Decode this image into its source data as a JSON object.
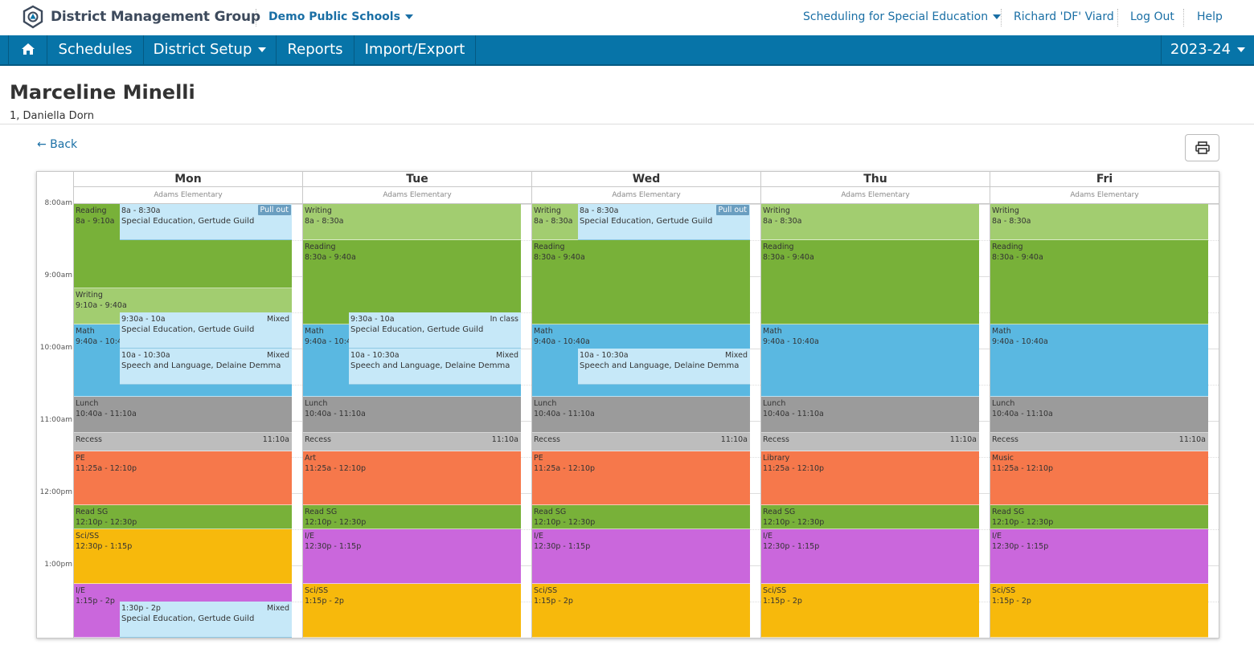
{
  "header": {
    "brand": "District Management Group",
    "district": "Demo Public Schools",
    "module": "Scheduling for Special Education",
    "user": "Richard 'DF' Viard",
    "logout": "Log Out",
    "help": "Help"
  },
  "nav": {
    "schedules": "Schedules",
    "district_setup": "District Setup",
    "reports": "Reports",
    "import_export": "Import/Export",
    "year": "2023-24"
  },
  "student": {
    "name": "Marceline Minelli",
    "subtitle": "1, Daniella Dorn"
  },
  "back": "← Back",
  "times": [
    "8:00am",
    "9:00am",
    "10:00am",
    "11:00am",
    "12:00pm",
    "1:00pm"
  ],
  "days": [
    {
      "name": "Mon",
      "school": "Adams Elementary",
      "blocks": [
        {
          "title": "Reading",
          "time": "8a - 9:10a",
          "color": "read",
          "start": 0,
          "end": 70
        },
        {
          "title": "Writing",
          "time": "9:10a - 9:40a",
          "color": "write",
          "start": 70,
          "end": 100
        },
        {
          "title": "Math",
          "time": "9:40a - 10:40a",
          "color": "math",
          "start": 100,
          "end": 160
        },
        {
          "title": "Lunch",
          "time": "10:40a - 11:10a",
          "color": "lunch",
          "start": 160,
          "end": 190
        },
        {
          "title": "Recess",
          "right": "11:10a",
          "color": "recess",
          "start": 190,
          "end": 205
        },
        {
          "title": "PE",
          "time": "11:25a - 12:10p",
          "color": "special",
          "start": 205,
          "end": 250
        },
        {
          "title": "Read SG",
          "time": "12:10p - 12:30p",
          "color": "read",
          "start": 250,
          "end": 270
        },
        {
          "title": "Sci/SS",
          "time": "12:30p - 1:15p",
          "color": "sci",
          "start": 270,
          "end": 315
        },
        {
          "title": "I/E",
          "time": "1:15p - 2p",
          "color": "ie",
          "start": 315,
          "end": 360
        }
      ],
      "services": [
        {
          "time": "8a - 8:30a",
          "title": "Special Education, Gertude Guild",
          "tag": "Pull out",
          "dark": true,
          "start": 0,
          "end": 30
        },
        {
          "time": "9:30a - 10a",
          "title": "Special Education, Gertude Guild",
          "tag": "Mixed",
          "dark": false,
          "start": 90,
          "end": 120
        },
        {
          "time": "10a - 10:30a",
          "title": "Speech and Language, Delaine Demma",
          "tag": "Mixed",
          "dark": false,
          "start": 120,
          "end": 150
        },
        {
          "time": "1:30p - 2p",
          "title": "Special Education, Gertude Guild",
          "tag": "Mixed",
          "dark": false,
          "start": 330,
          "end": 360
        }
      ]
    },
    {
      "name": "Tue",
      "school": "Adams Elementary",
      "blocks": [
        {
          "title": "Writing",
          "time": "8a - 8:30a",
          "color": "write",
          "start": 0,
          "end": 30
        },
        {
          "title": "Reading",
          "time": "8:30a - 9:40a",
          "color": "read",
          "start": 30,
          "end": 100
        },
        {
          "title": "Math",
          "time": "9:40a - 10:40a",
          "color": "math",
          "start": 100,
          "end": 160
        },
        {
          "title": "Lunch",
          "time": "10:40a - 11:10a",
          "color": "lunch",
          "start": 160,
          "end": 190
        },
        {
          "title": "Recess",
          "right": "11:10a",
          "color": "recess",
          "start": 190,
          "end": 205
        },
        {
          "title": "Art",
          "time": "11:25a - 12:10p",
          "color": "special",
          "start": 205,
          "end": 250
        },
        {
          "title": "Read SG",
          "time": "12:10p - 12:30p",
          "color": "read",
          "start": 250,
          "end": 270
        },
        {
          "title": "I/E",
          "time": "12:30p - 1:15p",
          "color": "ie",
          "start": 270,
          "end": 315
        },
        {
          "title": "Sci/SS",
          "time": "1:15p - 2p",
          "color": "sci",
          "start": 315,
          "end": 360
        }
      ],
      "services": [
        {
          "time": "9:30a - 10a",
          "title": "Special Education, Gertude Guild",
          "tag": "In class",
          "dark": false,
          "start": 90,
          "end": 120
        },
        {
          "time": "10a - 10:30a",
          "title": "Speech and Language, Delaine Demma",
          "tag": "Mixed",
          "dark": false,
          "start": 120,
          "end": 150
        }
      ]
    },
    {
      "name": "Wed",
      "school": "Adams Elementary",
      "blocks": [
        {
          "title": "Writing",
          "time": "8a - 8:30a",
          "color": "write",
          "start": 0,
          "end": 30
        },
        {
          "title": "Reading",
          "time": "8:30a - 9:40a",
          "color": "read",
          "start": 30,
          "end": 100
        },
        {
          "title": "Math",
          "time": "9:40a - 10:40a",
          "color": "math",
          "start": 100,
          "end": 160
        },
        {
          "title": "Lunch",
          "time": "10:40a - 11:10a",
          "color": "lunch",
          "start": 160,
          "end": 190
        },
        {
          "title": "Recess",
          "right": "11:10a",
          "color": "recess",
          "start": 190,
          "end": 205
        },
        {
          "title": "PE",
          "time": "11:25a - 12:10p",
          "color": "special",
          "start": 205,
          "end": 250
        },
        {
          "title": "Read SG",
          "time": "12:10p - 12:30p",
          "color": "read",
          "start": 250,
          "end": 270
        },
        {
          "title": "I/E",
          "time": "12:30p - 1:15p",
          "color": "ie",
          "start": 270,
          "end": 315
        },
        {
          "title": "Sci/SS",
          "time": "1:15p - 2p",
          "color": "sci",
          "start": 315,
          "end": 360
        }
      ],
      "services": [
        {
          "time": "8a - 8:30a",
          "title": "Special Education, Gertude Guild",
          "tag": "Pull out",
          "dark": true,
          "start": 0,
          "end": 30
        },
        {
          "time": "10a - 10:30a",
          "title": "Speech and Language, Delaine Demma",
          "tag": "Mixed",
          "dark": false,
          "start": 120,
          "end": 150
        }
      ]
    },
    {
      "name": "Thu",
      "school": "Adams Elementary",
      "blocks": [
        {
          "title": "Writing",
          "time": "8a - 8:30a",
          "color": "write",
          "start": 0,
          "end": 30
        },
        {
          "title": "Reading",
          "time": "8:30a - 9:40a",
          "color": "read",
          "start": 30,
          "end": 100
        },
        {
          "title": "Math",
          "time": "9:40a - 10:40a",
          "color": "math",
          "start": 100,
          "end": 160
        },
        {
          "title": "Lunch",
          "time": "10:40a - 11:10a",
          "color": "lunch",
          "start": 160,
          "end": 190
        },
        {
          "title": "Recess",
          "right": "11:10a",
          "color": "recess",
          "start": 190,
          "end": 205
        },
        {
          "title": "Library",
          "time": "11:25a - 12:10p",
          "color": "special",
          "start": 205,
          "end": 250
        },
        {
          "title": "Read SG",
          "time": "12:10p - 12:30p",
          "color": "read",
          "start": 250,
          "end": 270
        },
        {
          "title": "I/E",
          "time": "12:30p - 1:15p",
          "color": "ie",
          "start": 270,
          "end": 315
        },
        {
          "title": "Sci/SS",
          "time": "1:15p - 2p",
          "color": "sci",
          "start": 315,
          "end": 360
        }
      ],
      "services": []
    },
    {
      "name": "Fri",
      "school": "Adams Elementary",
      "blocks": [
        {
          "title": "Writing",
          "time": "8a - 8:30a",
          "color": "write",
          "start": 0,
          "end": 30
        },
        {
          "title": "Reading",
          "time": "8:30a - 9:40a",
          "color": "read",
          "start": 30,
          "end": 100
        },
        {
          "title": "Math",
          "time": "9:40a - 10:40a",
          "color": "math",
          "start": 100,
          "end": 160
        },
        {
          "title": "Lunch",
          "time": "10:40a - 11:10a",
          "color": "lunch",
          "start": 160,
          "end": 190
        },
        {
          "title": "Recess",
          "right": "11:10a",
          "color": "recess",
          "start": 190,
          "end": 205
        },
        {
          "title": "Music",
          "time": "11:25a - 12:10p",
          "color": "special",
          "start": 205,
          "end": 250
        },
        {
          "title": "Read SG",
          "time": "12:10p - 12:30p",
          "color": "read",
          "start": 250,
          "end": 270
        },
        {
          "title": "I/E",
          "time": "12:30p - 1:15p",
          "color": "ie",
          "start": 270,
          "end": 315
        },
        {
          "title": "Sci/SS",
          "time": "1:15p - 2p",
          "color": "sci",
          "start": 315,
          "end": 360
        }
      ],
      "services": []
    }
  ]
}
